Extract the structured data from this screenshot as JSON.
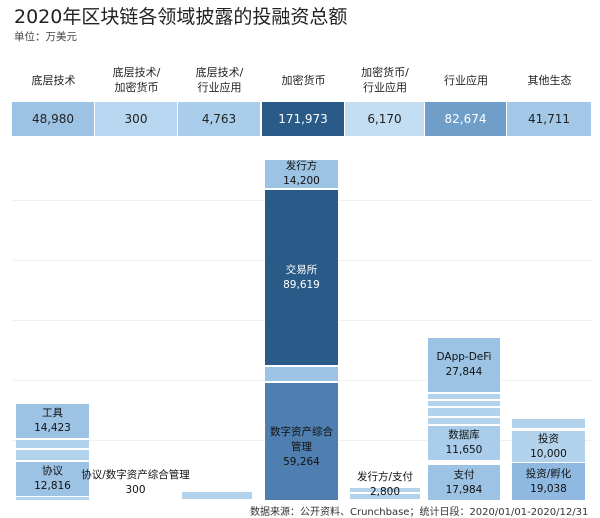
{
  "chart_data": {
    "type": "table",
    "title": "2020年区块链各领域披露的投融资总额",
    "subtitle": "单位：万美元",
    "categories": [
      "底层技术",
      "底层技术/加密货币",
      "底层技术/行业应用",
      "加密货币",
      "加密货币/行业应用",
      "行业应用",
      "其他生态"
    ],
    "header_lines": [
      [
        "底层技术"
      ],
      [
        "底层技术/",
        "加密货币"
      ],
      [
        "底层技术/",
        "行业应用"
      ],
      [
        "加密货币"
      ],
      [
        "加密货币/",
        "行业应用"
      ],
      [
        "行业应用"
      ],
      [
        "其他生态"
      ]
    ],
    "totals": [
      "48,980",
      "300",
      "4,763",
      "171,973",
      "6,170",
      "82,674",
      "41,711"
    ],
    "total_values": [
      48980,
      300,
      4763,
      171973,
      6170,
      82674,
      41711
    ],
    "colors": [
      "#9cc3e4",
      "#b8d6ef",
      "#a9cdea",
      "#2a5a88",
      "#c3ddf3",
      "#6f9ec9",
      "#a3c8e7"
    ],
    "subcategories": [
      {
        "name": "工具",
        "value": "14,423"
      },
      {
        "name": "协议",
        "value": "12,816"
      },
      {
        "name": "协议/数字资产综合管理",
        "value": "300"
      },
      {
        "name": "发行方",
        "value": "14,200"
      },
      {
        "name": "交易所",
        "value": "89,619"
      },
      {
        "name": "数字资产综合管理",
        "value": "59,264"
      },
      {
        "name": "发行方/支付",
        "value": "2,800"
      },
      {
        "name": "DApp-DeFi",
        "value": "27,844"
      },
      {
        "name": "数据库",
        "value": "11,650"
      },
      {
        "name": "支付",
        "value": "17,984"
      },
      {
        "name": "投资",
        "value": "10,000"
      },
      {
        "name": "投资/孵化",
        "value": "19,038"
      }
    ],
    "footer": "数据来源：公开资料、Crunchbase；统计日段：2020/01/01-2020/12/31"
  }
}
